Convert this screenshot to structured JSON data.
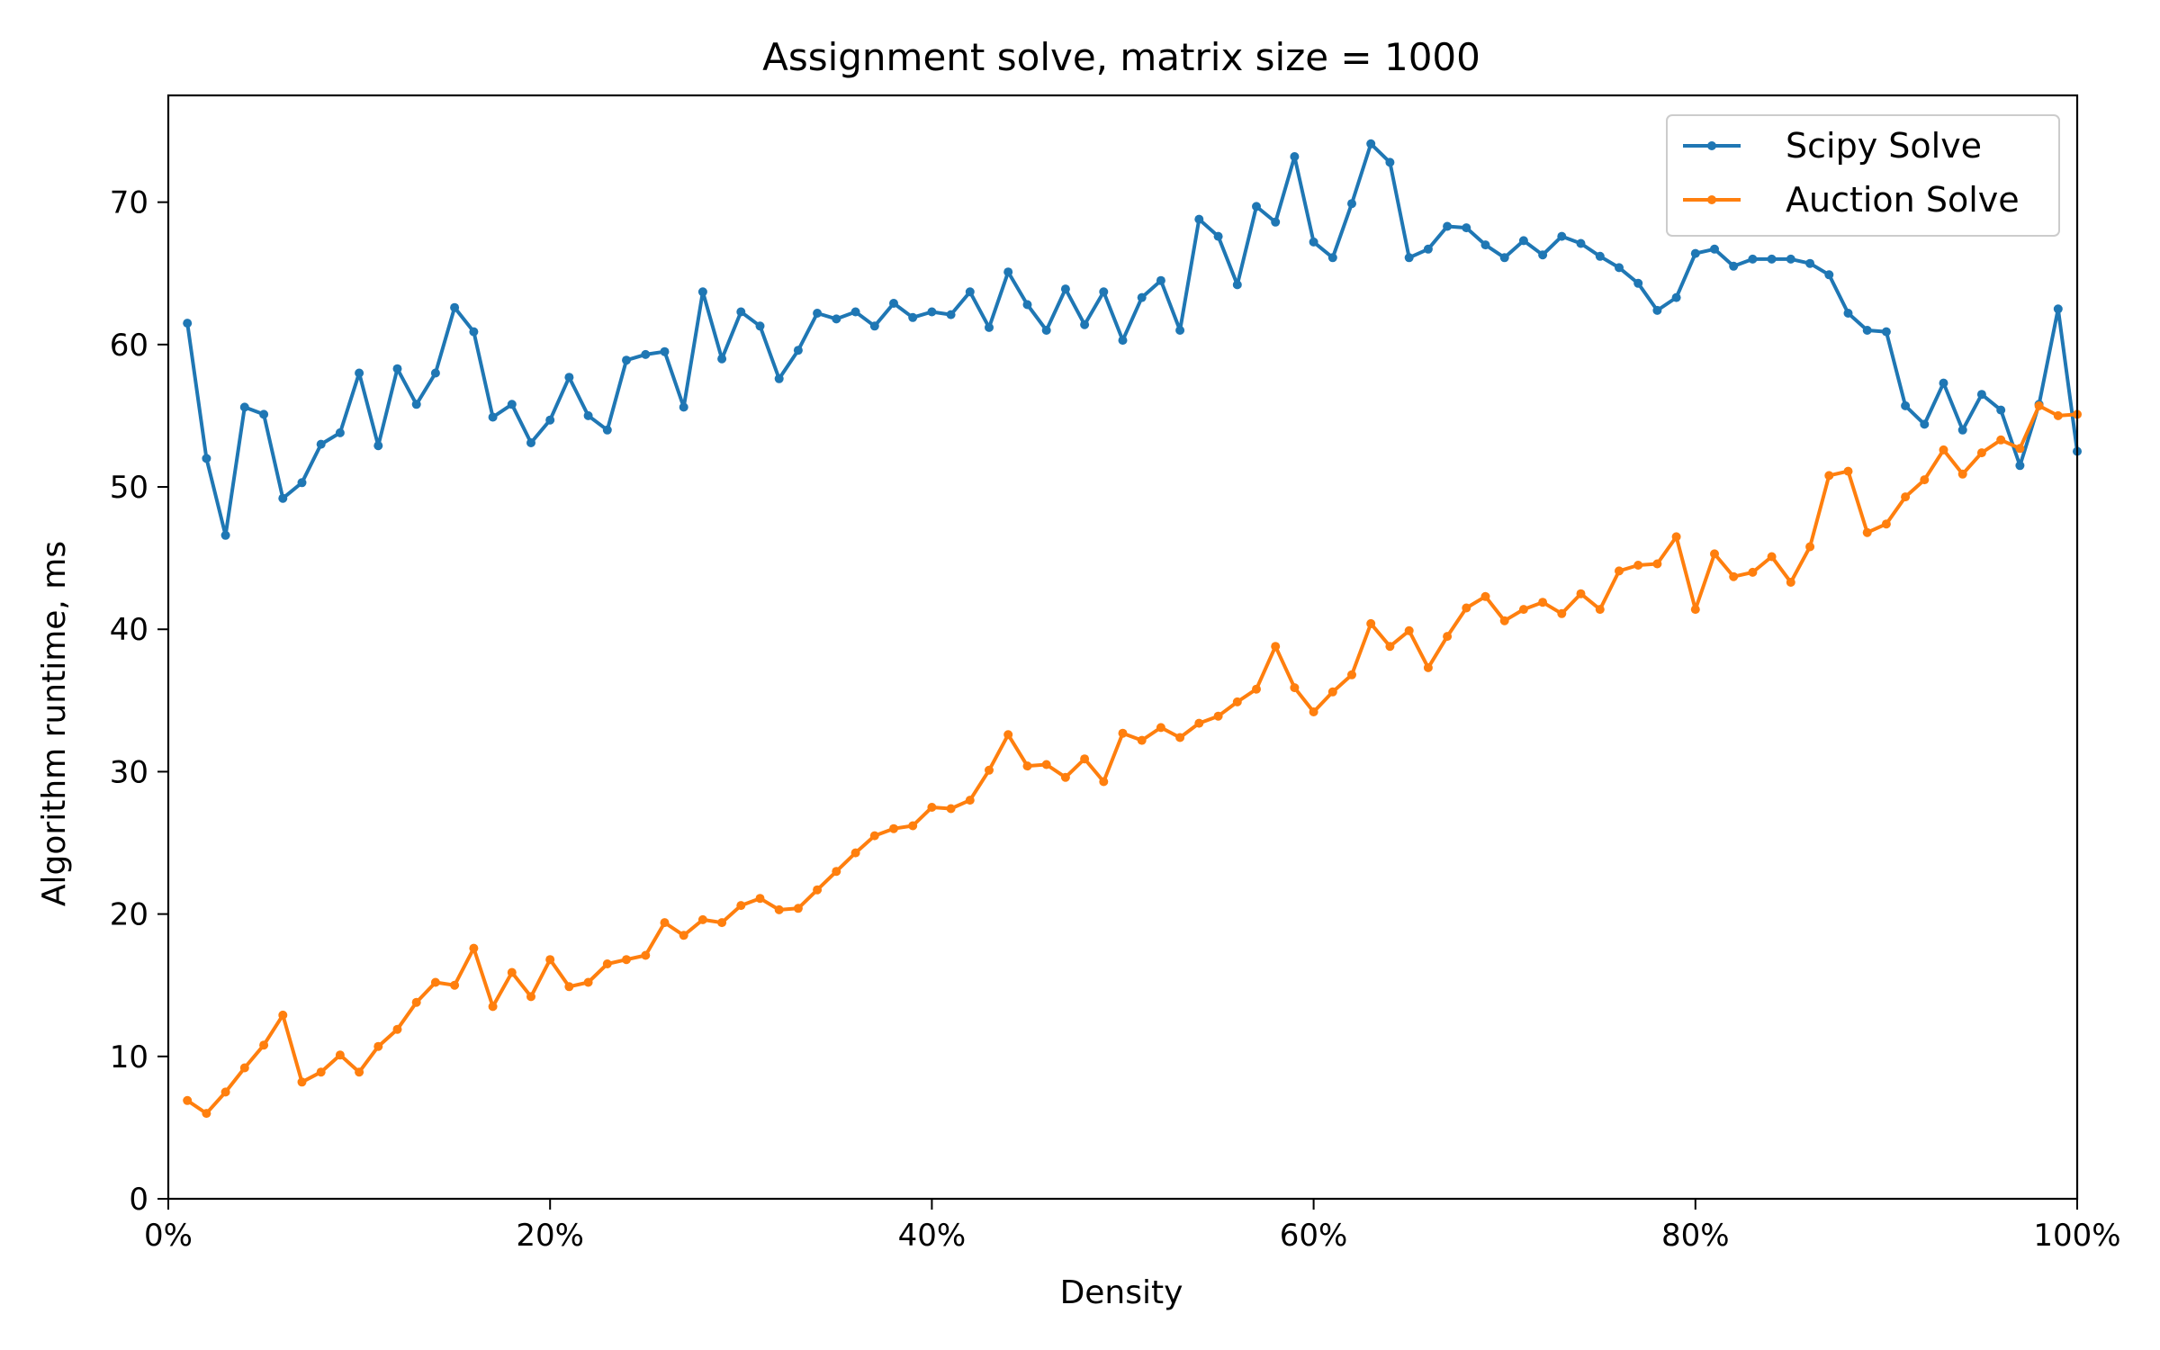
{
  "chart_data": {
    "type": "line",
    "title": "Assignment solve, matrix size = 1000",
    "xlabel": "Density",
    "ylabel": "Algorithm runtime, ms",
    "xlim": [
      0,
      100
    ],
    "ylim": [
      0,
      77.5
    ],
    "x_unit": "%",
    "xticks": [
      0,
      20,
      40,
      60,
      80,
      100
    ],
    "xtick_labels": [
      "0%",
      "20%",
      "40%",
      "60%",
      "80%",
      "100%"
    ],
    "yticks": [
      0,
      10,
      20,
      30,
      40,
      50,
      60,
      70
    ],
    "ytick_labels": [
      "0",
      "10",
      "20",
      "30",
      "40",
      "50",
      "60",
      "70"
    ],
    "grid": false,
    "legend_position": "top-right",
    "x": [
      1,
      2,
      3,
      4,
      5,
      6,
      7,
      8,
      9,
      10,
      11,
      12,
      13,
      14,
      15,
      16,
      17,
      18,
      19,
      20,
      21,
      22,
      23,
      24,
      25,
      26,
      27,
      28,
      29,
      30,
      31,
      32,
      33,
      34,
      35,
      36,
      37,
      38,
      39,
      40,
      41,
      42,
      43,
      44,
      45,
      46,
      47,
      48,
      49,
      50,
      51,
      52,
      53,
      54,
      55,
      56,
      57,
      58,
      59,
      60,
      61,
      62,
      63,
      64,
      65,
      66,
      67,
      68,
      69,
      70,
      71,
      72,
      73,
      74,
      75,
      76,
      77,
      78,
      79,
      80,
      81,
      82,
      83,
      84,
      85,
      86,
      87,
      88,
      89,
      90,
      91,
      92,
      93,
      94,
      95,
      96,
      97,
      98,
      99,
      100
    ],
    "series": [
      {
        "name": "Scipy Solve",
        "color": "#1f77b4",
        "values": [
          61.5,
          52.0,
          46.6,
          55.6,
          55.1,
          49.2,
          50.3,
          53.0,
          53.8,
          58.0,
          52.9,
          58.3,
          55.8,
          58.0,
          62.6,
          60.9,
          54.9,
          55.8,
          53.1,
          54.7,
          57.7,
          55.0,
          54.0,
          58.9,
          59.3,
          59.5,
          55.6,
          63.7,
          59.0,
          62.3,
          61.3,
          57.6,
          59.6,
          62.2,
          61.8,
          62.3,
          61.3,
          62.9,
          61.9,
          62.3,
          62.1,
          63.7,
          61.2,
          65.1,
          62.8,
          61.0,
          63.9,
          61.4,
          63.7,
          60.3,
          63.3,
          64.5,
          61.0,
          68.8,
          67.6,
          64.2,
          69.7,
          68.6,
          73.2,
          67.2,
          66.1,
          69.9,
          74.1,
          72.8,
          66.1,
          66.7,
          68.3,
          68.2,
          67.0,
          66.1,
          67.3,
          66.3,
          67.6,
          67.1,
          66.2,
          65.4,
          64.3,
          62.4,
          63.3,
          66.4,
          66.7,
          65.5,
          66.0,
          66.0,
          66.0,
          65.7,
          64.9,
          62.2,
          61.0,
          60.9,
          55.7,
          54.4,
          57.3,
          54.0,
          56.5,
          55.4,
          51.5,
          55.8,
          62.5,
          52.5
        ]
      },
      {
        "name": "Auction Solve",
        "color": "#ff7f0e",
        "values": [
          6.9,
          6.0,
          7.5,
          9.2,
          10.8,
          12.9,
          8.2,
          8.9,
          10.1,
          8.9,
          10.7,
          11.9,
          13.8,
          15.2,
          15.0,
          17.6,
          13.5,
          15.9,
          14.2,
          16.8,
          14.9,
          15.2,
          16.5,
          16.8,
          17.1,
          19.4,
          18.5,
          19.6,
          19.4,
          20.6,
          21.1,
          20.3,
          20.4,
          21.7,
          23.0,
          24.3,
          25.5,
          26.0,
          26.2,
          27.5,
          27.4,
          28.0,
          30.1,
          32.6,
          30.4,
          30.5,
          29.6,
          30.9,
          29.3,
          32.7,
          32.2,
          33.1,
          32.4,
          33.4,
          33.9,
          34.9,
          35.8,
          38.8,
          35.9,
          34.2,
          35.6,
          36.8,
          40.4,
          38.8,
          39.9,
          37.3,
          39.5,
          41.5,
          42.3,
          40.6,
          41.4,
          41.9,
          41.1,
          42.5,
          41.4,
          44.1,
          44.5,
          44.6,
          46.5,
          41.4,
          45.3,
          43.7,
          44.0,
          45.1,
          43.3,
          45.8,
          50.8,
          51.1,
          46.8,
          47.4,
          49.3,
          50.5,
          52.6,
          50.9,
          52.4,
          53.3,
          52.7,
          55.7,
          55.0,
          55.1
        ]
      }
    ]
  }
}
